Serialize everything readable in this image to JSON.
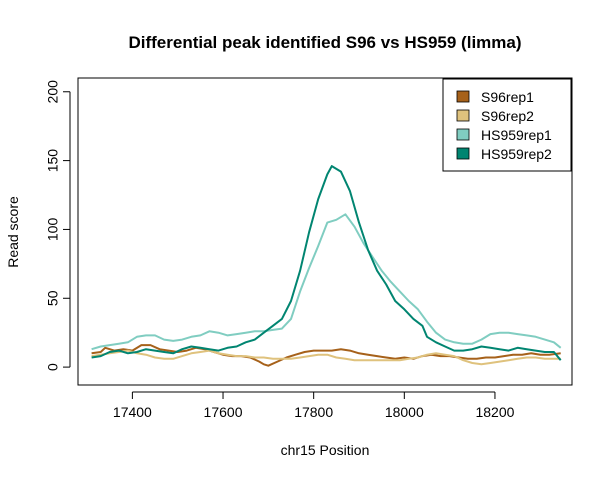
{
  "chart_data": {
    "type": "line",
    "title": "Differential peak identified S96 vs HS959 (limma)",
    "xlabel": "chr15 Position",
    "ylabel": "Read score",
    "xlim": [
      17280,
      17370
    ],
    "xlim_full": [
      17280,
      18370
    ],
    "ylim": [
      -13,
      210
    ],
    "x_ticks": [
      17400,
      17600,
      17800,
      18000,
      18200
    ],
    "y_ticks": [
      0,
      50,
      100,
      150,
      200
    ],
    "x_tick_labels": [
      "17400",
      "17600",
      "17800",
      "18000",
      "18200"
    ],
    "y_tick_labels": [
      "0",
      "50",
      "100",
      "150",
      "200"
    ],
    "legend_position": "top-right",
    "series": [
      {
        "name": "S96rep1",
        "color": "#a6611a",
        "points": [
          [
            17310,
            10
          ],
          [
            17330,
            11
          ],
          [
            17340,
            14
          ],
          [
            17360,
            12
          ],
          [
            17380,
            13
          ],
          [
            17400,
            12
          ],
          [
            17420,
            16
          ],
          [
            17440,
            16
          ],
          [
            17460,
            13
          ],
          [
            17480,
            12
          ],
          [
            17500,
            11
          ],
          [
            17520,
            12
          ],
          [
            17540,
            14
          ],
          [
            17560,
            13
          ],
          [
            17580,
            11
          ],
          [
            17600,
            9
          ],
          [
            17620,
            8
          ],
          [
            17640,
            8
          ],
          [
            17660,
            7
          ],
          [
            17680,
            4
          ],
          [
            17690,
            2
          ],
          [
            17700,
            1
          ],
          [
            17720,
            4
          ],
          [
            17740,
            7
          ],
          [
            17760,
            9
          ],
          [
            17780,
            11
          ],
          [
            17800,
            12
          ],
          [
            17820,
            12
          ],
          [
            17840,
            12
          ],
          [
            17860,
            13
          ],
          [
            17880,
            12
          ],
          [
            17900,
            10
          ],
          [
            17920,
            9
          ],
          [
            17940,
            8
          ],
          [
            17960,
            7
          ],
          [
            17980,
            6
          ],
          [
            18000,
            7
          ],
          [
            18020,
            6
          ],
          [
            18040,
            8
          ],
          [
            18060,
            9
          ],
          [
            18080,
            8
          ],
          [
            18100,
            8
          ],
          [
            18120,
            7
          ],
          [
            18140,
            6
          ],
          [
            18160,
            6
          ],
          [
            18180,
            7
          ],
          [
            18200,
            7
          ],
          [
            18220,
            8
          ],
          [
            18240,
            9
          ],
          [
            18260,
            9
          ],
          [
            18280,
            10
          ],
          [
            18300,
            9
          ],
          [
            18320,
            9
          ],
          [
            18345,
            10
          ]
        ]
      },
      {
        "name": "S96rep2",
        "color": "#dfc27d",
        "points": [
          [
            17310,
            8
          ],
          [
            17330,
            9
          ],
          [
            17350,
            10
          ],
          [
            17370,
            11
          ],
          [
            17390,
            12
          ],
          [
            17410,
            10
          ],
          [
            17430,
            9
          ],
          [
            17450,
            7
          ],
          [
            17470,
            6
          ],
          [
            17490,
            6
          ],
          [
            17510,
            8
          ],
          [
            17530,
            10
          ],
          [
            17550,
            11
          ],
          [
            17570,
            12
          ],
          [
            17590,
            10
          ],
          [
            17610,
            9
          ],
          [
            17630,
            8
          ],
          [
            17650,
            8
          ],
          [
            17670,
            7
          ],
          [
            17690,
            7
          ],
          [
            17710,
            6
          ],
          [
            17730,
            6
          ],
          [
            17750,
            6
          ],
          [
            17770,
            7
          ],
          [
            17790,
            8
          ],
          [
            17810,
            9
          ],
          [
            17830,
            9
          ],
          [
            17850,
            7
          ],
          [
            17870,
            6
          ],
          [
            17890,
            5
          ],
          [
            17910,
            5
          ],
          [
            17930,
            5
          ],
          [
            17950,
            5
          ],
          [
            17970,
            5
          ],
          [
            17990,
            5
          ],
          [
            18010,
            6
          ],
          [
            18030,
            7
          ],
          [
            18050,
            9
          ],
          [
            18070,
            10
          ],
          [
            18090,
            9
          ],
          [
            18110,
            8
          ],
          [
            18130,
            5
          ],
          [
            18150,
            3
          ],
          [
            18170,
            2
          ],
          [
            18190,
            3
          ],
          [
            18210,
            4
          ],
          [
            18230,
            5
          ],
          [
            18250,
            6
          ],
          [
            18270,
            7
          ],
          [
            18290,
            7
          ],
          [
            18310,
            6
          ],
          [
            18330,
            6
          ],
          [
            18345,
            6
          ]
        ]
      },
      {
        "name": "HS959rep1",
        "color": "#80cdc1",
        "points": [
          [
            17310,
            13
          ],
          [
            17330,
            15
          ],
          [
            17350,
            16
          ],
          [
            17370,
            17
          ],
          [
            17390,
            18
          ],
          [
            17410,
            22
          ],
          [
            17430,
            23
          ],
          [
            17450,
            23
          ],
          [
            17470,
            20
          ],
          [
            17490,
            19
          ],
          [
            17510,
            20
          ],
          [
            17530,
            22
          ],
          [
            17550,
            23
          ],
          [
            17570,
            26
          ],
          [
            17590,
            25
          ],
          [
            17610,
            23
          ],
          [
            17630,
            24
          ],
          [
            17650,
            25
          ],
          [
            17670,
            26
          ],
          [
            17690,
            26
          ],
          [
            17710,
            27
          ],
          [
            17730,
            28
          ],
          [
            17750,
            35
          ],
          [
            17770,
            55
          ],
          [
            17790,
            72
          ],
          [
            17810,
            88
          ],
          [
            17830,
            105
          ],
          [
            17850,
            107
          ],
          [
            17870,
            111
          ],
          [
            17890,
            102
          ],
          [
            17910,
            90
          ],
          [
            17930,
            80
          ],
          [
            17950,
            70
          ],
          [
            17970,
            62
          ],
          [
            17990,
            55
          ],
          [
            18010,
            48
          ],
          [
            18030,
            42
          ],
          [
            18050,
            33
          ],
          [
            18070,
            25
          ],
          [
            18090,
            20
          ],
          [
            18110,
            18
          ],
          [
            18130,
            17
          ],
          [
            18150,
            17
          ],
          [
            18170,
            20
          ],
          [
            18190,
            24
          ],
          [
            18210,
            25
          ],
          [
            18230,
            25
          ],
          [
            18250,
            24
          ],
          [
            18270,
            23
          ],
          [
            18290,
            22
          ],
          [
            18310,
            20
          ],
          [
            18330,
            18
          ],
          [
            18345,
            14
          ]
        ]
      },
      {
        "name": "HS959rep2",
        "color": "#018571",
        "points": [
          [
            17310,
            7
          ],
          [
            17330,
            8
          ],
          [
            17350,
            11
          ],
          [
            17370,
            12
          ],
          [
            17390,
            10
          ],
          [
            17410,
            11
          ],
          [
            17430,
            13
          ],
          [
            17450,
            12
          ],
          [
            17470,
            11
          ],
          [
            17490,
            10
          ],
          [
            17510,
            13
          ],
          [
            17530,
            15
          ],
          [
            17550,
            14
          ],
          [
            17570,
            13
          ],
          [
            17590,
            12
          ],
          [
            17610,
            14
          ],
          [
            17630,
            15
          ],
          [
            17650,
            18
          ],
          [
            17670,
            20
          ],
          [
            17690,
            25
          ],
          [
            17710,
            30
          ],
          [
            17730,
            35
          ],
          [
            17750,
            48
          ],
          [
            17770,
            70
          ],
          [
            17790,
            98
          ],
          [
            17810,
            122
          ],
          [
            17830,
            140
          ],
          [
            17840,
            146
          ],
          [
            17860,
            142
          ],
          [
            17880,
            128
          ],
          [
            17900,
            105
          ],
          [
            17920,
            85
          ],
          [
            17940,
            70
          ],
          [
            17960,
            60
          ],
          [
            17980,
            48
          ],
          [
            18000,
            42
          ],
          [
            18020,
            35
          ],
          [
            18040,
            30
          ],
          [
            18050,
            22
          ],
          [
            18070,
            18
          ],
          [
            18090,
            15
          ],
          [
            18110,
            12
          ],
          [
            18130,
            12
          ],
          [
            18150,
            13
          ],
          [
            18170,
            15
          ],
          [
            18190,
            14
          ],
          [
            18210,
            13
          ],
          [
            18230,
            12
          ],
          [
            18250,
            14
          ],
          [
            18270,
            13
          ],
          [
            18290,
            12
          ],
          [
            18310,
            11
          ],
          [
            18330,
            11
          ],
          [
            18345,
            5
          ]
        ]
      }
    ]
  }
}
